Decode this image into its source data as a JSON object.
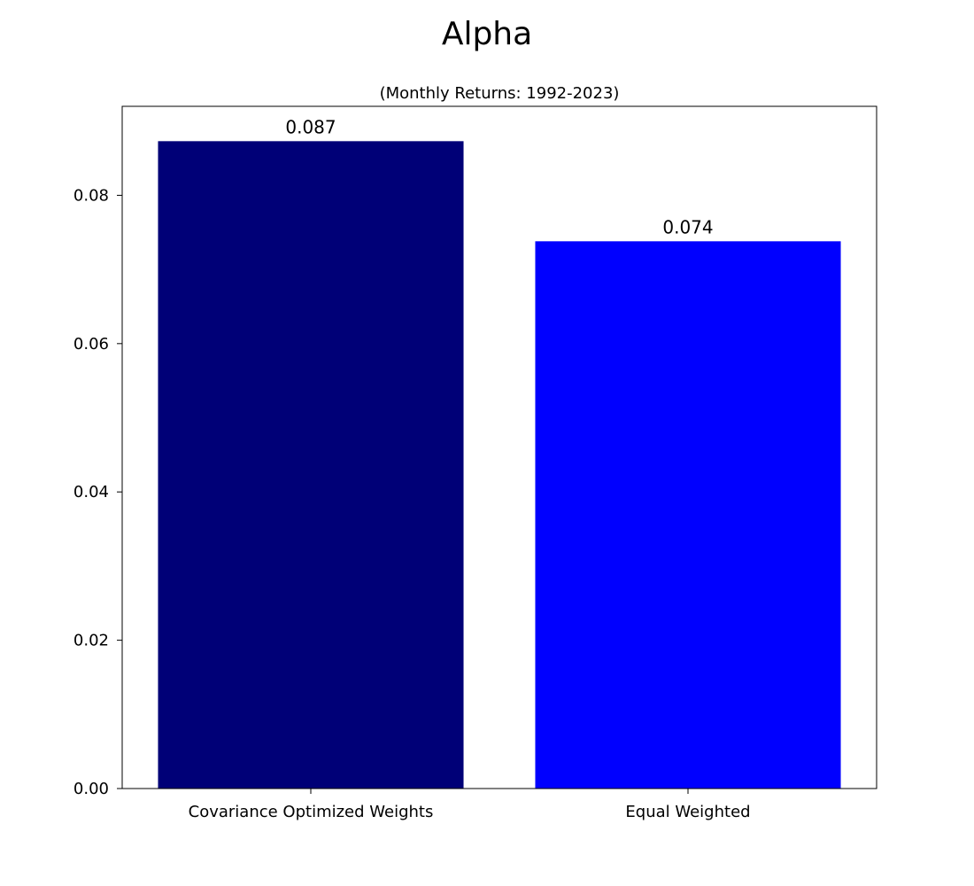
{
  "chart_data": {
    "type": "bar",
    "title": "Alpha",
    "subtitle": "(Monthly Returns: 1992-2023)",
    "xlabel": "",
    "ylabel": "",
    "categories": [
      "Covariance Optimized Weights",
      "Equal Weighted"
    ],
    "values": [
      0.0873,
      0.0738
    ],
    "data_labels": [
      "0.087",
      "0.074"
    ],
    "colors": [
      "#000077",
      "#0000ff"
    ],
    "ylim": [
      0,
      0.092
    ],
    "yticks": [
      0.0,
      0.02,
      0.04,
      0.06,
      0.08
    ],
    "ytick_labels": [
      "0.00",
      "0.02",
      "0.04",
      "0.06",
      "0.08"
    ],
    "grid": false,
    "legend": "none"
  }
}
